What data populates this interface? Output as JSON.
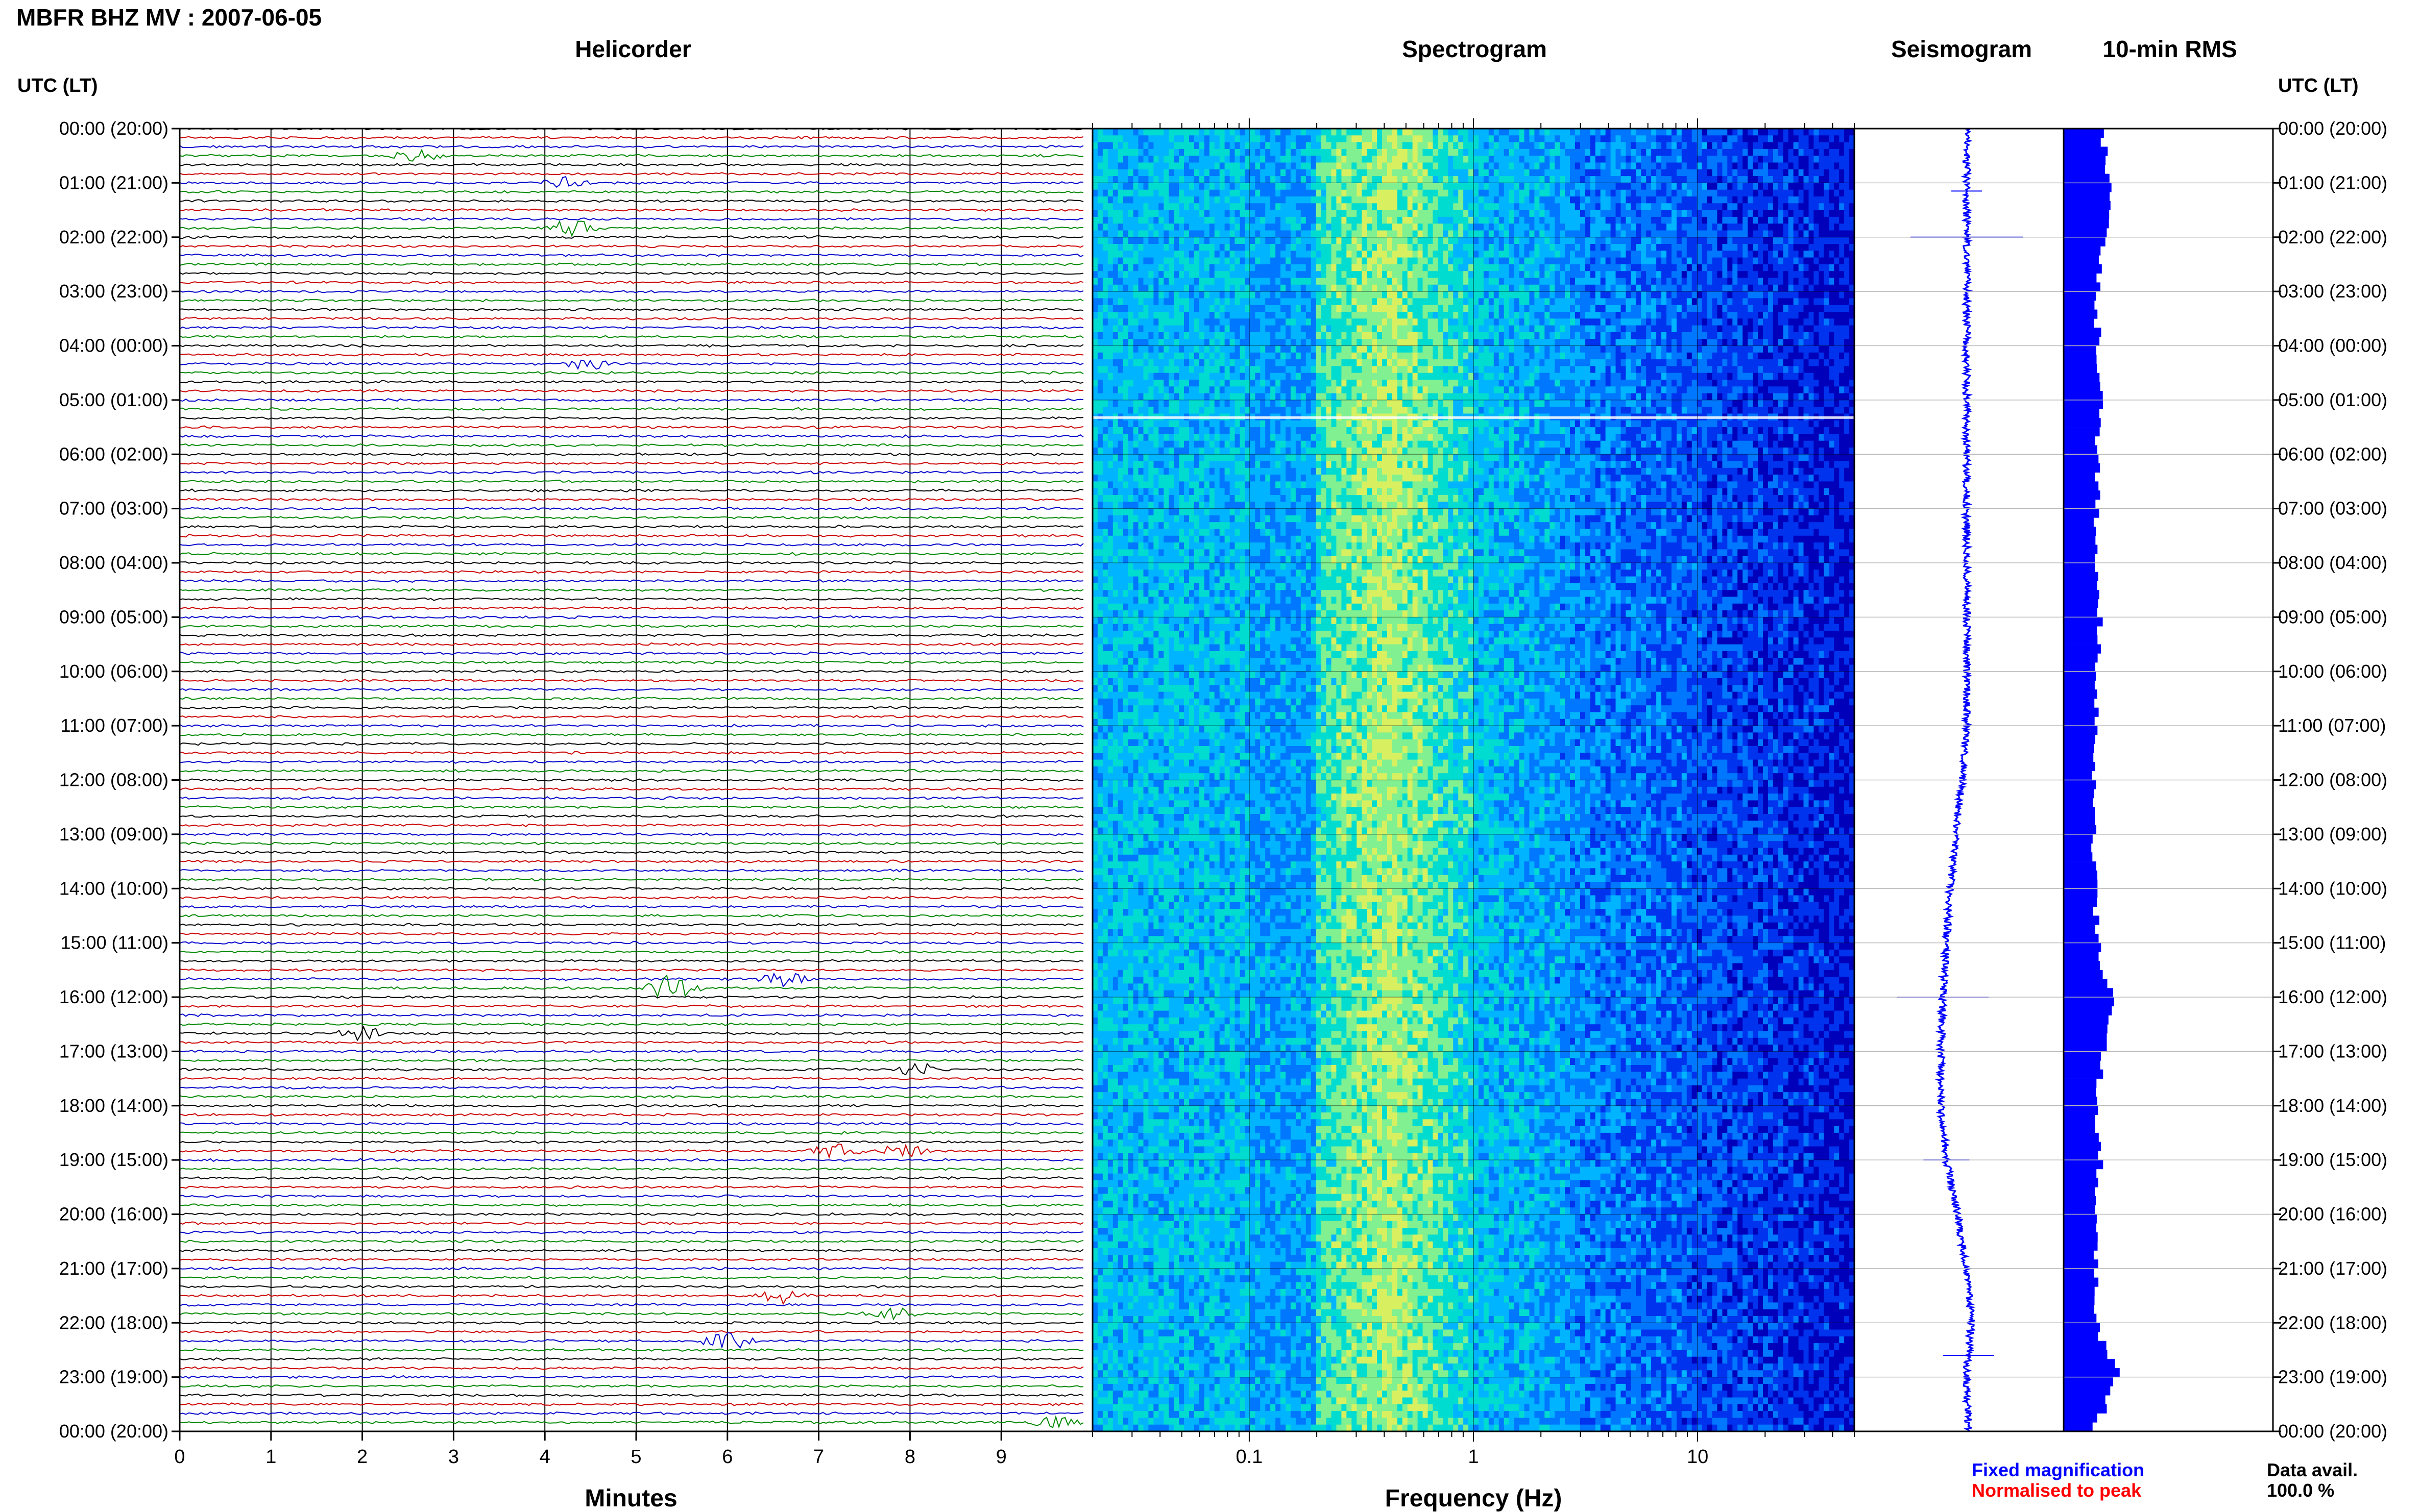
{
  "header": {
    "title": "MBFR BHZ MV : 2007-06-05"
  },
  "panels": {
    "helicorder": "Helicorder",
    "spectrogram": "Spectrogram",
    "seismogram": "Seismogram",
    "rms": "10-min RMS"
  },
  "axes": {
    "time_label_left": "UTC (LT)",
    "time_label_right": "UTC (LT)",
    "minutes_label": "Minutes",
    "frequency_label": "Frequency (Hz)"
  },
  "footer": {
    "fixed_magnification": "Fixed magnification",
    "normalised_to_peak": "Normalised to peak",
    "data_avail_label": "Data avail.",
    "data_avail_value": "100.0 %"
  },
  "colors": {
    "trace_cycle": [
      "#000000",
      "#cc0000",
      "#0000cc",
      "#008800"
    ],
    "fixed_magnification": "#0000ff",
    "normalised_to_peak": "#ff0000",
    "rms_bar": "#0000ff",
    "seismogram": "#0000ff"
  },
  "chart_data": [
    {
      "type": "helicorder",
      "title": "Helicorder",
      "xlabel": "Minutes",
      "x_ticks": [
        "0",
        "1",
        "2",
        "3",
        "4",
        "5",
        "6",
        "7",
        "8",
        "9"
      ],
      "xlim": [
        0,
        10
      ],
      "rows_per_hour": 6,
      "time_labels": [
        "00:00 (20:00)",
        "01:00 (21:00)",
        "02:00 (22:00)",
        "03:00 (23:00)",
        "04:00 (00:00)",
        "05:00 (01:00)",
        "06:00 (02:00)",
        "07:00 (03:00)",
        "08:00 (04:00)",
        "09:00 (05:00)",
        "10:00 (06:00)",
        "11:00 (07:00)",
        "12:00 (08:00)",
        "13:00 (09:00)",
        "14:00 (10:00)",
        "15:00 (11:00)",
        "16:00 (12:00)",
        "17:00 (13:00)",
        "18:00 (14:00)",
        "19:00 (15:00)",
        "20:00 (16:00)",
        "21:00 (17:00)",
        "22:00 (18:00)",
        "23:00 (19:00)",
        "00:00 (20:00)"
      ],
      "events": [
        {
          "row": 3,
          "minute": 2.6,
          "amp": 1.2
        },
        {
          "row": 6,
          "minute": 4.2,
          "amp": 1.2
        },
        {
          "row": 11,
          "minute": 4.3,
          "amp": 2.2
        },
        {
          "row": 26,
          "minute": 4.5,
          "amp": 1.3
        },
        {
          "row": 95,
          "minute": 5.4,
          "amp": 3.0
        },
        {
          "row": 94,
          "minute": 6.6,
          "amp": 1.5
        },
        {
          "row": 100,
          "minute": 2.0,
          "amp": 1.4
        },
        {
          "row": 104,
          "minute": 8.1,
          "amp": 1.4
        },
        {
          "row": 113,
          "minute": 7.2,
          "amp": 1.6
        },
        {
          "row": 113,
          "minute": 7.9,
          "amp": 1.6
        },
        {
          "row": 129,
          "minute": 6.6,
          "amp": 1.5
        },
        {
          "row": 131,
          "minute": 7.8,
          "amp": 1.4
        },
        {
          "row": 134,
          "minute": 6.0,
          "amp": 1.8
        },
        {
          "row": 143,
          "minute": 9.6,
          "amp": 1.2
        }
      ]
    },
    {
      "type": "heatmap",
      "title": "Spectrogram",
      "xlabel": "Frequency (Hz)",
      "x_scale": "log",
      "xlim": [
        0.02,
        50
      ],
      "x_ticks": [
        "0.1",
        "1",
        "10"
      ],
      "colormap": [
        "#0000bb",
        "#0033ee",
        "#0077ff",
        "#00b4ff",
        "#00dcd0",
        "#80f090",
        "#d8f060"
      ]
    },
    {
      "type": "line",
      "title": "Seismogram",
      "hours": [
        0,
        1,
        2,
        3,
        4,
        5,
        6,
        7,
        8,
        9,
        10,
        11,
        12,
        13,
        14,
        15,
        16,
        17,
        18,
        19,
        20,
        21,
        22,
        23,
        24
      ],
      "offset": [
        0.0,
        0.0,
        0.0,
        0.0,
        0.0,
        0.0,
        0.0,
        0.0,
        0.0,
        0.0,
        0.0,
        0.0,
        -0.05,
        -0.12,
        -0.18,
        -0.22,
        -0.26,
        -0.28,
        -0.28,
        -0.22,
        -0.1,
        0.0,
        0.05,
        0.0,
        0.02
      ]
    },
    {
      "type": "bar",
      "title": "10-min RMS",
      "hours": [
        0,
        1,
        2,
        3,
        4,
        5,
        6,
        7,
        8,
        9,
        10,
        11,
        12,
        13,
        14,
        15,
        16,
        17,
        18,
        19,
        20,
        21,
        22,
        23,
        24
      ],
      "rms": [
        0.55,
        0.7,
        0.6,
        0.5,
        0.52,
        0.55,
        0.5,
        0.5,
        0.5,
        0.55,
        0.5,
        0.52,
        0.45,
        0.45,
        0.48,
        0.5,
        0.75,
        0.6,
        0.48,
        0.55,
        0.45,
        0.5,
        0.5,
        0.8,
        0.45
      ]
    }
  ]
}
